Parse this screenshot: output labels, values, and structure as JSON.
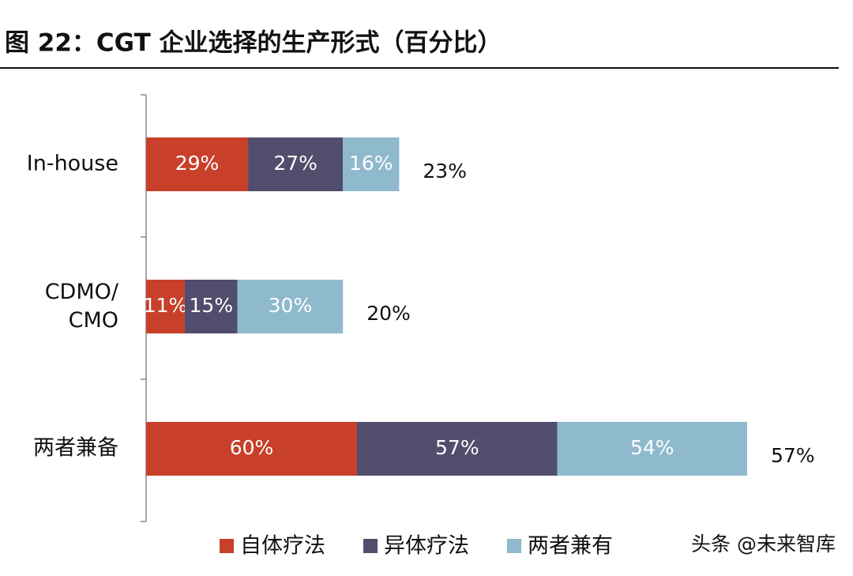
{
  "chart_data": {
    "type": "stacked-barh",
    "title": "图 22：CGT 企业选择的生产形式（百分比）",
    "categories": [
      "In-house",
      "CDMO/\nCMO",
      "两者兼备"
    ],
    "series": [
      {
        "name": "自体疗法",
        "color": "#c8402a",
        "values": [
          29,
          11,
          60
        ],
        "value_labels": [
          "29%",
          "11%",
          "60%"
        ]
      },
      {
        "name": "异体疗法",
        "color": "#504d6d",
        "values": [
          27,
          15,
          57
        ],
        "value_labels": [
          "27%",
          "15%",
          "57%"
        ]
      },
      {
        "name": "两者兼有",
        "color": "#8fb9cc",
        "values": [
          16,
          30,
          54
        ],
        "value_labels": [
          "16%",
          "30%",
          "54%"
        ]
      }
    ],
    "side_values": [
      23,
      20,
      57
    ],
    "side_value_labels": [
      "23%",
      "20%",
      "57%"
    ],
    "xlim": [
      0,
      200
    ],
    "watermark": "头条 @未来智库"
  }
}
